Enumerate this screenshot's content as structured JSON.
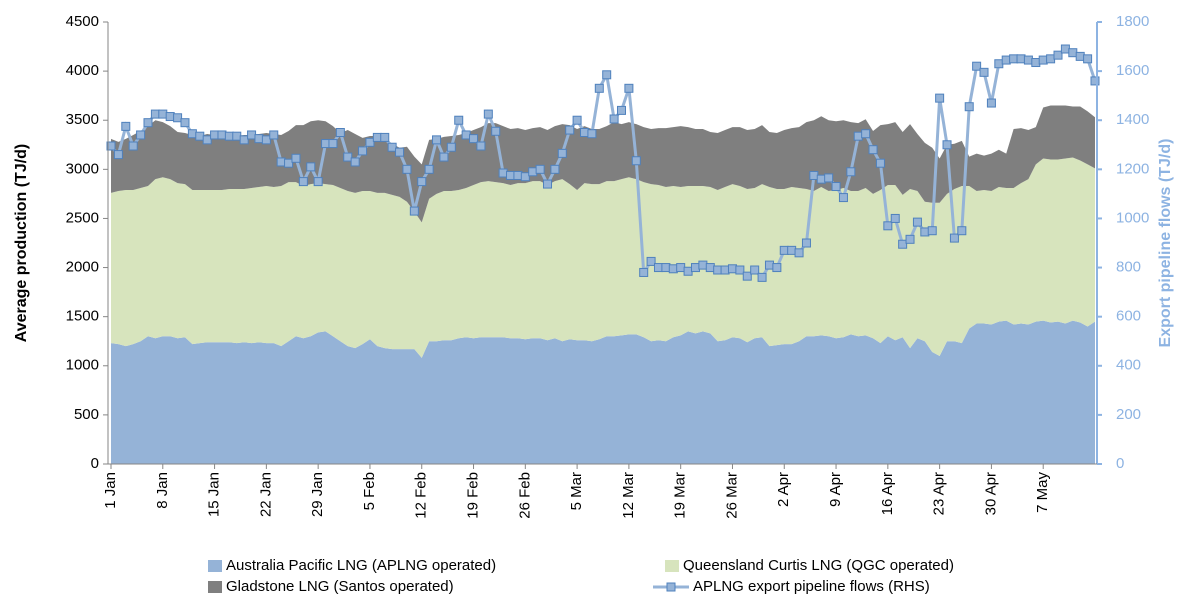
{
  "chart_data": {
    "type": "area",
    "stacked": true,
    "y_label": "Average production (TJ/d)",
    "y2_label": "Export pipeline flows (TJ/d)",
    "categories": [
      "1 Jan",
      null,
      null,
      null,
      null,
      null,
      null,
      "8 Jan",
      null,
      null,
      null,
      null,
      null,
      null,
      "15 Jan",
      null,
      null,
      null,
      null,
      null,
      null,
      "22 Jan",
      null,
      null,
      null,
      null,
      null,
      null,
      "29 Jan",
      null,
      null,
      null,
      null,
      null,
      null,
      "5 Feb",
      null,
      null,
      null,
      null,
      null,
      null,
      "12 Feb",
      null,
      null,
      null,
      null,
      null,
      null,
      "19 Feb",
      null,
      null,
      null,
      null,
      null,
      null,
      "26 Feb",
      null,
      null,
      null,
      null,
      null,
      null,
      "5 Mar",
      null,
      null,
      null,
      null,
      null,
      null,
      "12 Mar",
      null,
      null,
      null,
      null,
      null,
      null,
      "19 Mar",
      null,
      null,
      null,
      null,
      null,
      null,
      "26 Mar",
      null,
      null,
      null,
      null,
      null,
      null,
      "2 Apr",
      null,
      null,
      null,
      null,
      null,
      null,
      "9 Apr",
      null,
      null,
      null,
      null,
      null,
      null,
      "16 Apr",
      null,
      null,
      null,
      null,
      null,
      null,
      "23 Apr",
      null,
      null,
      null,
      null,
      null,
      null,
      "30 Apr",
      null,
      null,
      null,
      null,
      null,
      null,
      "7 May",
      null,
      null,
      null,
      null,
      null,
      null,
      null
    ],
    "series": [
      {
        "name": "Australia Pacific LNG (APLNG operated)",
        "type": "area",
        "color": "#95b3d7",
        "values": [
          1230,
          1220,
          1200,
          1220,
          1250,
          1300,
          1280,
          1300,
          1300,
          1280,
          1290,
          1220,
          1230,
          1240,
          1240,
          1240,
          1240,
          1230,
          1240,
          1230,
          1240,
          1230,
          1230,
          1200,
          1250,
          1300,
          1280,
          1300,
          1340,
          1350,
          1300,
          1250,
          1200,
          1180,
          1220,
          1270,
          1200,
          1180,
          1170,
          1170,
          1170,
          1170,
          1080,
          1250,
          1250,
          1260,
          1260,
          1280,
          1290,
          1280,
          1290,
          1290,
          1290,
          1290,
          1280,
          1280,
          1270,
          1280,
          1280,
          1260,
          1280,
          1250,
          1270,
          1260,
          1260,
          1250,
          1270,
          1300,
          1300,
          1310,
          1320,
          1320,
          1290,
          1250,
          1260,
          1250,
          1290,
          1310,
          1350,
          1330,
          1350,
          1330,
          1250,
          1260,
          1290,
          1280,
          1240,
          1280,
          1290,
          1200,
          1210,
          1220,
          1220,
          1250,
          1300,
          1300,
          1310,
          1300,
          1280,
          1290,
          1320,
          1300,
          1310,
          1280,
          1230,
          1300,
          1260,
          1290,
          1180,
          1280,
          1250,
          1140,
          1100,
          1250,
          1250,
          1230,
          1380,
          1430,
          1430,
          1420,
          1450,
          1460,
          1420,
          1430,
          1420,
          1450,
          1460,
          1440,
          1450,
          1430,
          1460,
          1440,
          1400,
          1450
        ]
      },
      {
        "name": "Queensland Curtis LNG (QGC operated)",
        "type": "area",
        "color": "#d7e4bd",
        "values": [
          1530,
          1560,
          1590,
          1570,
          1560,
          1530,
          1620,
          1620,
          1600,
          1580,
          1560,
          1570,
          1560,
          1550,
          1550,
          1550,
          1560,
          1570,
          1560,
          1580,
          1580,
          1600,
          1590,
          1630,
          1620,
          1570,
          1550,
          1550,
          1520,
          1500,
          1540,
          1560,
          1580,
          1580,
          1560,
          1510,
          1560,
          1580,
          1570,
          1550,
          1500,
          1400,
          1380,
          1450,
          1500,
          1520,
          1520,
          1510,
          1520,
          1560,
          1580,
          1590,
          1580,
          1570,
          1560,
          1580,
          1590,
          1600,
          1600,
          1580,
          1600,
          1650,
          1580,
          1530,
          1600,
          1600,
          1580,
          1580,
          1580,
          1590,
          1600,
          1580,
          1580,
          1600,
          1580,
          1570,
          1540,
          1510,
          1480,
          1500,
          1480,
          1490,
          1540,
          1560,
          1560,
          1550,
          1560,
          1530,
          1560,
          1620,
          1590,
          1580,
          1600,
          1560,
          1500,
          1480,
          1510,
          1480,
          1510,
          1520,
          1460,
          1480,
          1500,
          1470,
          1560,
          1540,
          1580,
          1450,
          1620,
          1500,
          1420,
          1520,
          1560,
          1500,
          1550,
          1600,
          1450,
          1350,
          1360,
          1360,
          1370,
          1350,
          1390,
          1430,
          1480,
          1600,
          1650,
          1660,
          1650,
          1680,
          1660,
          1650,
          1650,
          1560
        ]
      },
      {
        "name": "Gladstone LNG (Santos operated)",
        "type": "area",
        "color": "#7f7f7f",
        "values": [
          550,
          500,
          520,
          560,
          580,
          610,
          600,
          560,
          540,
          520,
          520,
          560,
          550,
          570,
          560,
          560,
          550,
          540,
          550,
          540,
          540,
          540,
          540,
          520,
          520,
          580,
          620,
          640,
          640,
          640,
          600,
          560,
          620,
          600,
          540,
          560,
          580,
          560,
          520,
          500,
          560,
          560,
          590,
          600,
          560,
          550,
          560,
          560,
          560,
          560,
          560,
          590,
          600,
          580,
          570,
          560,
          540,
          540,
          550,
          560,
          560,
          560,
          600,
          620,
          580,
          560,
          560,
          560,
          600,
          560,
          560,
          560,
          560,
          560,
          580,
          600,
          600,
          620,
          600,
          580,
          580,
          560,
          580,
          580,
          580,
          600,
          600,
          600,
          600,
          560,
          570,
          600,
          600,
          620,
          680,
          720,
          720,
          720,
          700,
          690,
          700,
          690,
          700,
          640,
          660,
          620,
          640,
          640,
          660,
          580,
          600,
          560,
          450,
          500,
          460,
          460,
          300,
          380,
          350,
          380,
          380,
          350,
          600,
          560,
          500,
          380,
          520,
          550,
          550,
          540,
          520,
          550,
          540,
          520
        ]
      },
      {
        "name": "APLNG export pipeline flows (RHS)",
        "type": "line",
        "axis": "y2",
        "color": "#95b3d7",
        "marker": "square",
        "values": [
          1295,
          1260,
          1375,
          1295,
          1340,
          1390,
          1425,
          1425,
          1415,
          1410,
          1390,
          1345,
          1335,
          1320,
          1340,
          1340,
          1335,
          1335,
          1320,
          1340,
          1325,
          1320,
          1340,
          1230,
          1225,
          1245,
          1150,
          1210,
          1150,
          1305,
          1305,
          1350,
          1250,
          1230,
          1275,
          1310,
          1330,
          1330,
          1290,
          1270,
          1200,
          1030,
          1150,
          1200,
          1320,
          1250,
          1290,
          1400,
          1340,
          1325,
          1295,
          1425,
          1355,
          1185,
          1175,
          1175,
          1170,
          1190,
          1200,
          1140,
          1200,
          1265,
          1360,
          1400,
          1350,
          1345,
          1530,
          1585,
          1405,
          1440,
          1530,
          1235,
          780,
          825,
          800,
          800,
          795,
          800,
          785,
          800,
          810,
          800,
          790,
          790,
          795,
          790,
          765,
          790,
          760,
          810,
          800,
          870,
          870,
          860,
          900,
          1175,
          1160,
          1165,
          1130,
          1085,
          1190,
          1335,
          1345,
          1280,
          1225,
          970,
          1000,
          895,
          915,
          985,
          945,
          950,
          1490,
          1300,
          920,
          950,
          1455,
          1620,
          1595,
          1470,
          1630,
          1645,
          1650,
          1650,
          1645,
          1635,
          1645,
          1650,
          1665,
          1690,
          1675,
          1660,
          1650,
          1560
        ]
      }
    ],
    "ylim": [
      0,
      4500
    ],
    "yticks": [
      0,
      500,
      1000,
      1500,
      2000,
      2500,
      3000,
      3500,
      4000,
      4500
    ],
    "y2lim": [
      0,
      1800
    ],
    "y2ticks": [
      0,
      200,
      400,
      600,
      800,
      1000,
      1200,
      1400,
      1600,
      1800
    ],
    "y2_color": "#8db3e2",
    "grid": false,
    "legend": "bottom"
  }
}
